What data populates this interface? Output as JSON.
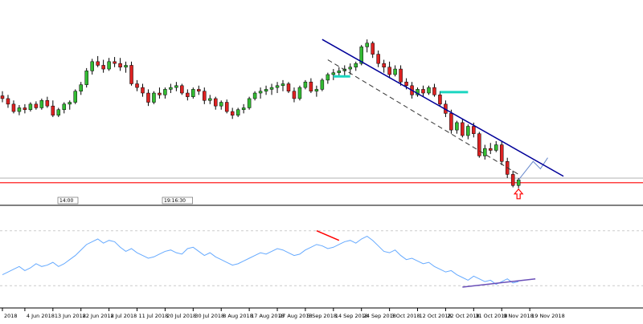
{
  "chart_data": [
    {
      "type": "candlestick",
      "title": "",
      "x_axis_shared": true,
      "candles": [
        [
          1.285,
          1.29,
          1.278,
          1.282
        ],
        [
          1.282,
          1.286,
          1.272,
          1.276
        ],
        [
          1.276,
          1.28,
          1.266,
          1.268
        ],
        [
          1.268,
          1.275,
          1.264,
          1.272
        ],
        [
          1.272,
          1.276,
          1.266,
          1.27
        ],
        [
          1.27,
          1.278,
          1.268,
          1.276
        ],
        [
          1.276,
          1.279,
          1.27,
          1.272
        ],
        [
          1.272,
          1.282,
          1.27,
          1.28
        ],
        [
          1.28,
          1.284,
          1.272,
          1.274
        ],
        [
          1.274,
          1.28,
          1.262,
          1.264
        ],
        [
          1.264,
          1.272,
          1.262,
          1.27
        ],
        [
          1.27,
          1.278,
          1.266,
          1.276
        ],
        [
          1.276,
          1.28,
          1.27,
          1.278
        ],
        [
          1.278,
          1.292,
          1.276,
          1.29
        ],
        [
          1.29,
          1.3,
          1.286,
          1.297
        ],
        [
          1.297,
          1.315,
          1.294,
          1.312
        ],
        [
          1.312,
          1.325,
          1.308,
          1.322
        ],
        [
          1.322,
          1.328,
          1.316,
          1.318
        ],
        [
          1.318,
          1.324,
          1.31,
          1.314
        ],
        [
          1.314,
          1.326,
          1.312,
          1.322
        ],
        [
          1.322,
          1.327,
          1.316,
          1.32
        ],
        [
          1.32,
          1.326,
          1.312,
          1.316
        ],
        [
          1.316,
          1.322,
          1.31,
          1.318
        ],
        [
          1.318,
          1.322,
          1.296,
          1.298
        ],
        [
          1.298,
          1.302,
          1.29,
          1.294
        ],
        [
          1.294,
          1.298,
          1.284,
          1.288
        ],
        [
          1.288,
          1.292,
          1.274,
          1.278
        ],
        [
          1.278,
          1.29,
          1.276,
          1.288
        ],
        [
          1.288,
          1.294,
          1.282,
          1.286
        ],
        [
          1.286,
          1.294,
          1.282,
          1.292
        ],
        [
          1.292,
          1.298,
          1.288,
          1.294
        ],
        [
          1.294,
          1.3,
          1.29,
          1.296
        ],
        [
          1.296,
          1.298,
          1.286,
          1.288
        ],
        [
          1.288,
          1.292,
          1.28,
          1.284
        ],
        [
          1.284,
          1.294,
          1.282,
          1.292
        ],
        [
          1.292,
          1.296,
          1.286,
          1.29
        ],
        [
          1.29,
          1.294,
          1.276,
          1.28
        ],
        [
          1.28,
          1.286,
          1.276,
          1.282
        ],
        [
          1.282,
          1.284,
          1.27,
          1.274
        ],
        [
          1.274,
          1.28,
          1.27,
          1.278
        ],
        [
          1.278,
          1.281,
          1.266,
          1.268
        ],
        [
          1.268,
          1.272,
          1.26,
          1.264
        ],
        [
          1.264,
          1.272,
          1.262,
          1.27
        ],
        [
          1.27,
          1.276,
          1.266,
          1.272
        ],
        [
          1.272,
          1.284,
          1.27,
          1.282
        ],
        [
          1.282,
          1.29,
          1.28,
          1.288
        ],
        [
          1.288,
          1.294,
          1.282,
          1.29
        ],
        [
          1.29,
          1.296,
          1.286,
          1.292
        ],
        [
          1.292,
          1.298,
          1.286,
          1.294
        ],
        [
          1.294,
          1.3,
          1.288,
          1.296
        ],
        [
          1.296,
          1.302,
          1.29,
          1.298
        ],
        [
          1.298,
          1.3,
          1.288,
          1.29
        ],
        [
          1.29,
          1.294,
          1.278,
          1.282
        ],
        [
          1.282,
          1.296,
          1.28,
          1.294
        ],
        [
          1.294,
          1.302,
          1.292,
          1.3
        ],
        [
          1.3,
          1.304,
          1.288,
          1.29
        ],
        [
          1.29,
          1.296,
          1.284,
          1.292
        ],
        [
          1.292,
          1.304,
          1.29,
          1.302
        ],
        [
          1.302,
          1.31,
          1.298,
          1.308
        ],
        [
          1.308,
          1.314,
          1.302,
          1.31
        ],
        [
          1.31,
          1.316,
          1.306,
          1.312
        ],
        [
          1.312,
          1.318,
          1.306,
          1.314
        ],
        [
          1.314,
          1.32,
          1.308,
          1.316
        ],
        [
          1.316,
          1.322,
          1.312,
          1.32
        ],
        [
          1.32,
          1.34,
          1.318,
          1.338
        ],
        [
          1.338,
          1.346,
          1.332,
          1.342
        ],
        [
          1.342,
          1.344,
          1.326,
          1.33
        ],
        [
          1.33,
          1.334,
          1.316,
          1.32
        ],
        [
          1.32,
          1.324,
          1.31,
          1.316
        ],
        [
          1.316,
          1.322,
          1.304,
          1.308
        ],
        [
          1.308,
          1.318,
          1.306,
          1.314
        ],
        [
          1.314,
          1.318,
          1.296,
          1.3
        ],
        [
          1.3,
          1.304,
          1.292,
          1.296
        ],
        [
          1.296,
          1.3,
          1.282,
          1.286
        ],
        [
          1.286,
          1.294,
          1.284,
          1.292
        ],
        [
          1.292,
          1.296,
          1.284,
          1.288
        ],
        [
          1.288,
          1.296,
          1.286,
          1.294
        ],
        [
          1.294,
          1.298,
          1.284,
          1.286
        ],
        [
          1.286,
          1.29,
          1.274,
          1.276
        ],
        [
          1.276,
          1.28,
          1.262,
          1.266
        ],
        [
          1.266,
          1.27,
          1.244,
          1.248
        ],
        [
          1.248,
          1.258,
          1.244,
          1.256
        ],
        [
          1.256,
          1.26,
          1.24,
          1.242
        ],
        [
          1.242,
          1.254,
          1.238,
          1.252
        ],
        [
          1.252,
          1.256,
          1.24,
          1.244
        ],
        [
          1.244,
          1.246,
          1.218,
          1.22
        ],
        [
          1.22,
          1.232,
          1.216,
          1.228
        ],
        [
          1.228,
          1.234,
          1.222,
          1.226
        ],
        [
          1.226,
          1.236,
          1.224,
          1.232
        ],
        [
          1.232,
          1.236,
          1.21,
          1.214
        ],
        [
          1.214,
          1.218,
          1.196,
          1.2
        ],
        [
          1.2,
          1.204,
          1.186,
          1.188
        ],
        [
          1.188,
          1.196,
          1.185,
          1.194
        ]
      ],
      "projection": [
        1.194,
        1.204,
        1.214,
        1.206,
        1.218
      ],
      "y_range": [
        1.17,
        1.38
      ],
      "horizontal_lines": [
        {
          "value": 1.191,
          "color": "#ff0000"
        },
        {
          "value": 1.196,
          "color": "#bbbbbb"
        }
      ],
      "trendlines": [
        {
          "from": [
            57,
            1.346
          ],
          "to": [
            100,
            1.198
          ],
          "color": "#000099",
          "style": "solid"
        },
        {
          "from": [
            58,
            1.324
          ],
          "to": [
            92,
            1.2
          ],
          "color": "#333333",
          "style": "dashed"
        },
        {
          "from": [
            59,
            1.306
          ],
          "to": [
            62,
            1.306
          ],
          "color": "#1bd6c0",
          "style": "solid"
        },
        {
          "from": [
            78,
            1.289
          ],
          "to": [
            83,
            1.289
          ],
          "color": "#1bd6c0",
          "style": "solid"
        }
      ],
      "labels_left": [
        "14:00",
        "19:16:30"
      ],
      "arrow_up_at": 92
    },
    {
      "type": "line",
      "title": "",
      "series": [
        {
          "values": [
            38,
            40,
            42,
            44,
            41,
            43,
            46,
            44,
            45,
            47,
            44,
            46,
            49,
            52,
            56,
            60,
            62,
            64,
            61,
            63,
            62,
            58,
            55,
            57,
            54,
            52,
            50,
            51,
            53,
            55,
            56,
            54,
            53,
            57,
            58,
            55,
            52,
            54,
            51,
            49,
            47,
            45,
            46,
            48,
            50,
            52,
            54,
            53,
            55,
            57,
            56,
            54,
            52,
            53,
            56,
            58,
            60,
            59,
            57,
            58,
            60,
            62,
            63,
            61,
            64,
            66,
            63,
            59,
            55,
            54,
            56,
            52,
            49,
            50,
            48,
            46,
            47,
            44,
            42,
            40,
            41,
            38,
            36,
            34,
            37,
            35,
            33,
            34,
            31,
            33,
            35,
            32,
            33
          ]
        }
      ],
      "y_range": [
        15,
        85
      ],
      "levels": [
        70,
        30
      ],
      "trendlines": [
        {
          "from": [
            56,
            70
          ],
          "to": [
            60,
            63
          ],
          "color": "#ff0000"
        },
        {
          "from": [
            82,
            29
          ],
          "to": [
            95,
            35
          ],
          "color": "#6a4fb8"
        }
      ]
    }
  ],
  "x_axis": {
    "ticks": [
      {
        "index": 0,
        "label": "2018"
      },
      {
        "index": 4,
        "label": "4 Jun 2018"
      },
      {
        "index": 9,
        "label": "13 Jun 2018"
      },
      {
        "index": 14,
        "label": "22 Jun 2018"
      },
      {
        "index": 19,
        "label": "2 Jul 2018"
      },
      {
        "index": 24,
        "label": "11 Jul 2018"
      },
      {
        "index": 29,
        "label": "20 Jul 2018"
      },
      {
        "index": 34,
        "label": "30 Jul 2018"
      },
      {
        "index": 39,
        "label": "8 Aug 2018"
      },
      {
        "index": 44,
        "label": "17 Aug 2018"
      },
      {
        "index": 49,
        "label": "27 Aug 2018"
      },
      {
        "index": 54,
        "label": "5 Sep 2018"
      },
      {
        "index": 59,
        "label": "14 Sep 2018"
      },
      {
        "index": 64,
        "label": "24 Sep 2018"
      },
      {
        "index": 69,
        "label": "3 Oct 2018"
      },
      {
        "index": 74,
        "label": "12 Oct 2018"
      },
      {
        "index": 79,
        "label": "22 Oct 2018"
      },
      {
        "index": 84,
        "label": "31 Oct 2018"
      },
      {
        "index": 89,
        "label": "9 Nov 2018"
      },
      {
        "index": 94,
        "label": "19 Nov 2018"
      }
    ]
  },
  "colors": {
    "bull_body": "#33bb33",
    "bear_body": "#dd2222",
    "wick": "#000000",
    "oscillator": "#66aaff",
    "level_line": "#cccccc",
    "divider": "#000000",
    "arrow": "#ff0000"
  }
}
